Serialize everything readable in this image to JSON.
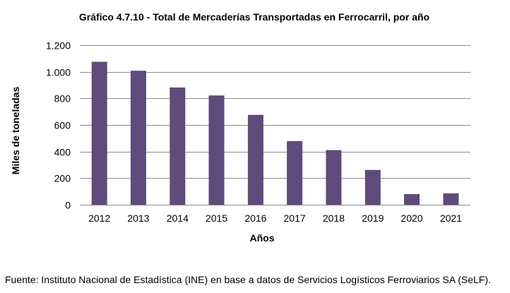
{
  "chart_data": {
    "type": "bar",
    "title": "Gráfico 4.7.10 - Total de Mercaderías Transportadas en Ferrocarril, por año",
    "xlabel": "Años",
    "ylabel": "Miles de toneladas",
    "categories": [
      "2012",
      "2013",
      "2014",
      "2015",
      "2016",
      "2017",
      "2018",
      "2019",
      "2020",
      "2021"
    ],
    "values": [
      1075,
      1008,
      882,
      822,
      676,
      479,
      411,
      262,
      80,
      86
    ],
    "ylim": [
      0,
      1200
    ],
    "yticks": [
      0,
      200,
      400,
      600,
      800,
      1000,
      1200
    ],
    "ytick_labels": [
      "0",
      "200",
      "400",
      "600",
      "800",
      "1.000",
      "1.200"
    ],
    "grid": true,
    "bar_color": "#5e4b7c",
    "grid_color": "#8c8c8c"
  },
  "source": "Fuente: Instituto Nacional de Estadística (INE) en base a datos de Servicios Logísticos Ferroviarios SA (SeLF)."
}
